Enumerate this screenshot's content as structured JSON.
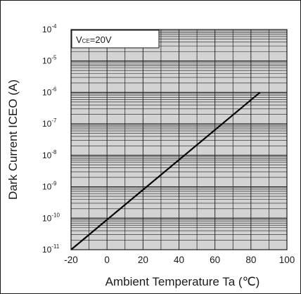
{
  "chart_data": {
    "type": "line",
    "title": "",
    "xlabel": "Ambient Temperature  Ta (℃)",
    "ylabel": "Dark Current ICEO (A)",
    "x_scale": "linear",
    "y_scale": "log",
    "xlim": [
      -20,
      100
    ],
    "ylim": [
      1e-11,
      0.0001
    ],
    "x_ticks": [
      {
        "value": -20,
        "label": "-20"
      },
      {
        "value": 0,
        "label": "0"
      },
      {
        "value": 20,
        "label": "20"
      },
      {
        "value": 40,
        "label": "40"
      },
      {
        "value": 60,
        "label": "60"
      },
      {
        "value": 80,
        "label": "80"
      },
      {
        "value": 100,
        "label": "100"
      }
    ],
    "y_ticks": [
      {
        "exponent": -11,
        "base": "10",
        "exp_label": "-11"
      },
      {
        "exponent": -10,
        "base": "10",
        "exp_label": "-10"
      },
      {
        "exponent": -9,
        "base": "10",
        "exp_label": "-9"
      },
      {
        "exponent": -8,
        "base": "10",
        "exp_label": "-8"
      },
      {
        "exponent": -7,
        "base": "10",
        "exp_label": "-7"
      },
      {
        "exponent": -6,
        "base": "10",
        "exp_label": "-6"
      },
      {
        "exponent": -5,
        "base": "10",
        "exp_label": "-5"
      },
      {
        "exponent": -4,
        "base": "10",
        "exp_label": "-4"
      }
    ],
    "grid": true,
    "annotation": {
      "main": "V",
      "sub": "CE",
      "rest": "=20V"
    },
    "series": [
      {
        "x": [
          -20,
          85
        ],
        "y": [
          1e-11,
          1e-06
        ]
      }
    ]
  },
  "colors": {
    "plot_bg": "#d3d3d3",
    "grid": "#1a1a1a",
    "line": "#000000",
    "text": "#1a1a1a"
  }
}
